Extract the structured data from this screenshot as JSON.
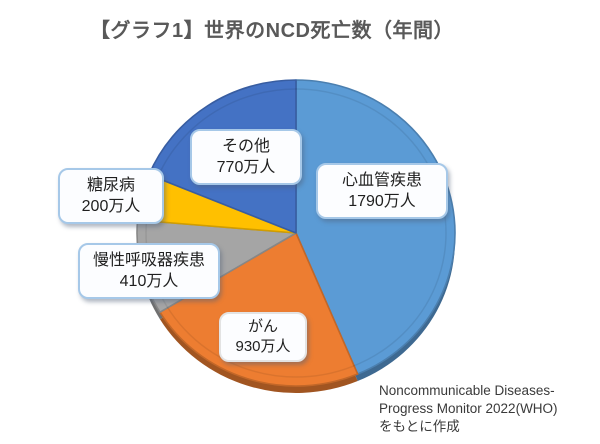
{
  "chart_data": {
    "type": "pie",
    "title": "【グラフ1】世界のNCD死亡数（年間）",
    "unit": "万人",
    "total": 4100,
    "start_angle_deg": 0,
    "direction": "clockwise",
    "legend_position": "none",
    "labels_style": "callout-boxes",
    "slices": [
      {
        "key": "cardiovascular",
        "label": "心血管疾患",
        "value": 1790,
        "value_label": "1790万人",
        "percent": 43.7,
        "color": "#5B9BD5"
      },
      {
        "key": "cancer",
        "label": "がん",
        "value": 930,
        "value_label": "930万人",
        "percent": 22.7,
        "color": "#ED7D31"
      },
      {
        "key": "respiratory",
        "label": "慢性呼吸器疾患",
        "value": 410,
        "value_label": "410万人",
        "percent": 10.0,
        "color": "#A5A5A5"
      },
      {
        "key": "diabetes",
        "label": "糖尿病",
        "value": 200,
        "value_label": "200万人",
        "percent": 4.9,
        "color": "#FFC000"
      },
      {
        "key": "other",
        "label": "その他",
        "value": 770,
        "value_label": "770万人",
        "percent": 18.8,
        "color": "#4472C4"
      }
    ],
    "source_note_lines": [
      "Noncommunicable Diseases-",
      "Progress Monitor 2022(WHO)",
      "をもとに作成"
    ],
    "colors": {
      "title_text": "#595959",
      "label_box_bg": "#FCFDFF",
      "label_box_border": "#A6C8E8",
      "source_text": "#3a3a3a"
    }
  }
}
